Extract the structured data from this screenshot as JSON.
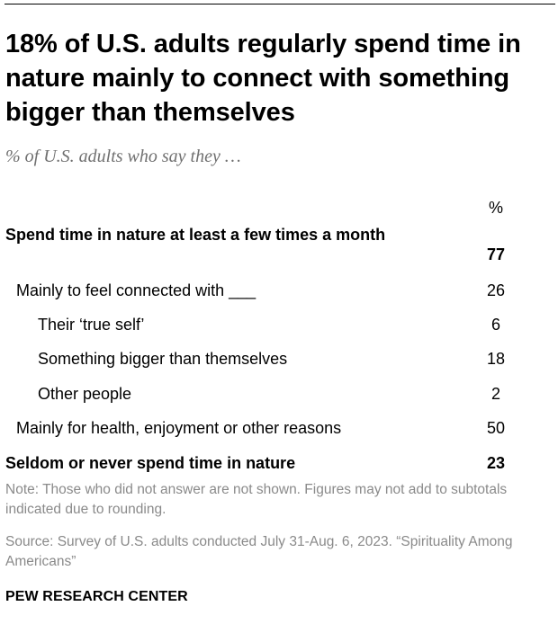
{
  "chart_data": {
    "type": "table",
    "title": "18% of U.S. adults regularly spend time in nature mainly to connect with something bigger than themselves",
    "subtitle": "% of U.S. adults who say they …",
    "column_header": "%",
    "rows": [
      {
        "label": "Spend time in nature at least a few times a month",
        "value": "77",
        "level": 0,
        "bold": true
      },
      {
        "label": "Mainly to feel connected with ___",
        "value": "26",
        "level": 1,
        "bold": false
      },
      {
        "label": "Their ‘true self’",
        "value": "6",
        "level": 2,
        "bold": false
      },
      {
        "label": "Something bigger than themselves",
        "value": "18",
        "level": 2,
        "bold": false
      },
      {
        "label": "Other people",
        "value": "2",
        "level": 2,
        "bold": false
      },
      {
        "label": "Mainly for health, enjoyment or other reasons",
        "value": "50",
        "level": 1,
        "bold": false
      },
      {
        "label": "Seldom or never spend time in nature",
        "value": "23",
        "level": 0,
        "bold": true
      }
    ]
  },
  "notes": {
    "note": "Note: Those who did not answer are not shown. Figures may not add to subtotals indicated due to rounding.",
    "source": "Source: Survey of U.S. adults conducted July 31-Aug. 6, 2023. “Spirituality Among Americans”"
  },
  "brand": "PEW RESEARCH CENTER"
}
